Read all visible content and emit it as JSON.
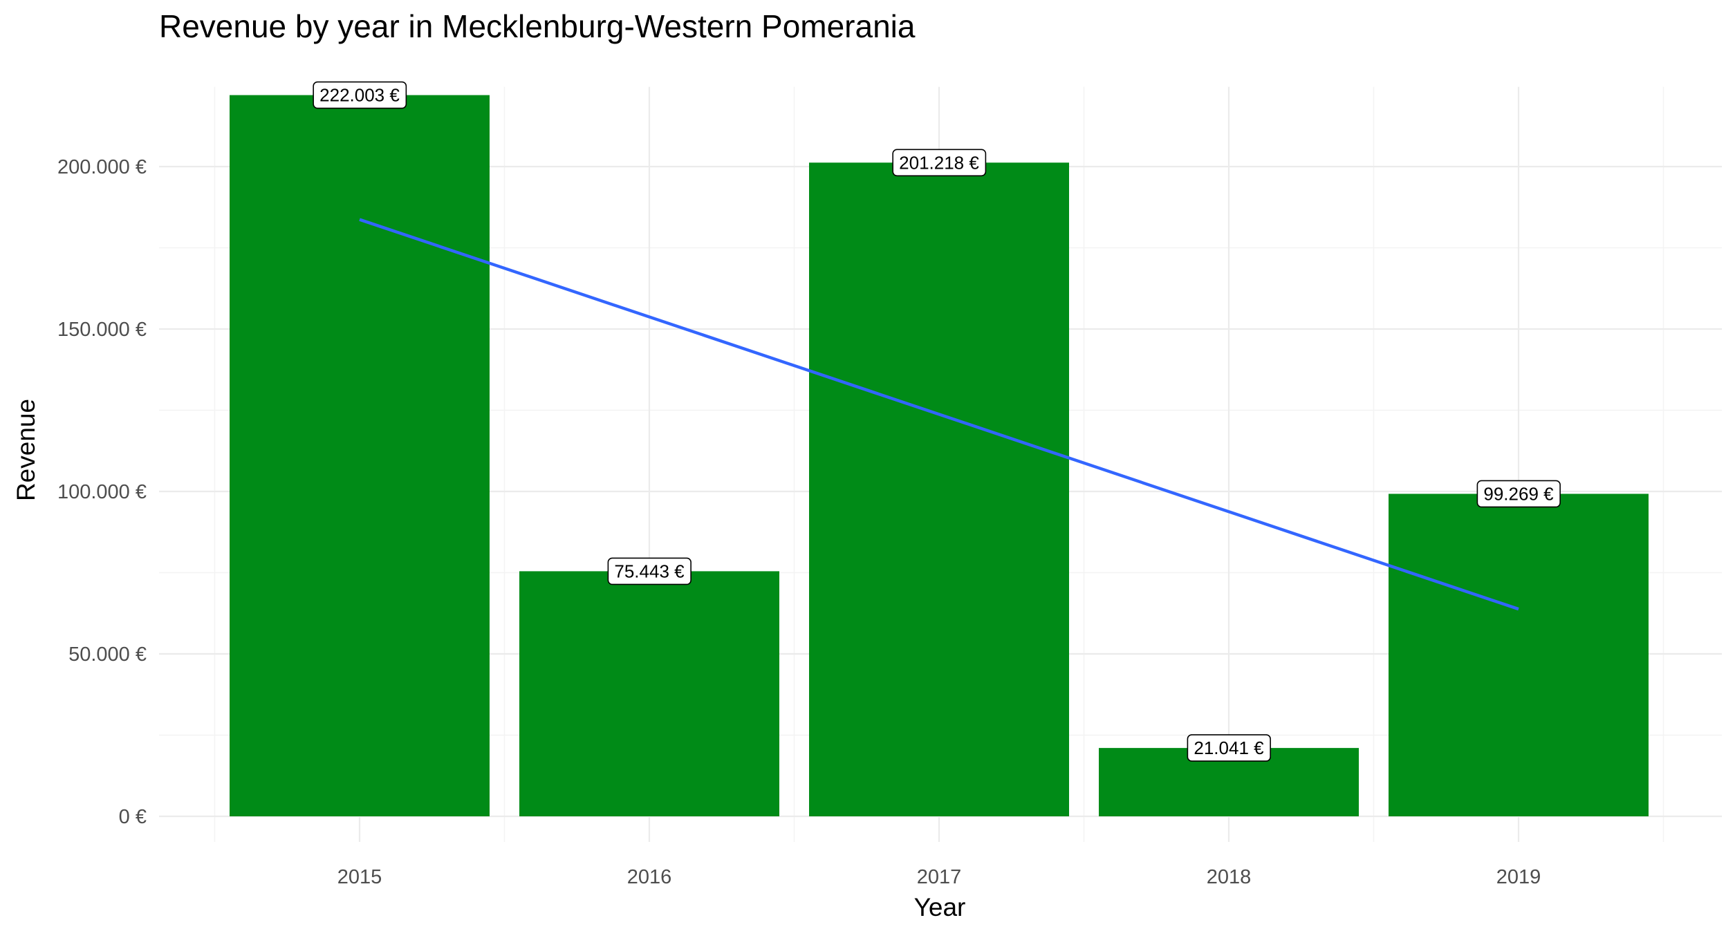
{
  "chart_data": {
    "type": "bar",
    "title": "Revenue by year in Mecklenburg-Western Pomerania",
    "xlabel": "Year",
    "ylabel": "Revenue",
    "categories": [
      "2015",
      "2016",
      "2017",
      "2018",
      "2019"
    ],
    "values": [
      222003,
      75443,
      201218,
      21041,
      99269
    ],
    "value_labels": [
      "222.003 €",
      "75.443 €",
      "201.218 €",
      "21.041 €",
      "99.269 €"
    ],
    "ylim": [
      0,
      222003
    ],
    "y_ticks": [
      0,
      50000,
      100000,
      150000,
      200000
    ],
    "y_tick_labels": [
      "0 €",
      "50.000 €",
      "100.000 €",
      "150.000 €",
      "200.000 €"
    ],
    "bar_color": "#008b17",
    "trend_line": {
      "type": "linear",
      "color": "#3366ff",
      "start": 183700,
      "end": 63800
    },
    "grid": true,
    "legend": "none"
  }
}
